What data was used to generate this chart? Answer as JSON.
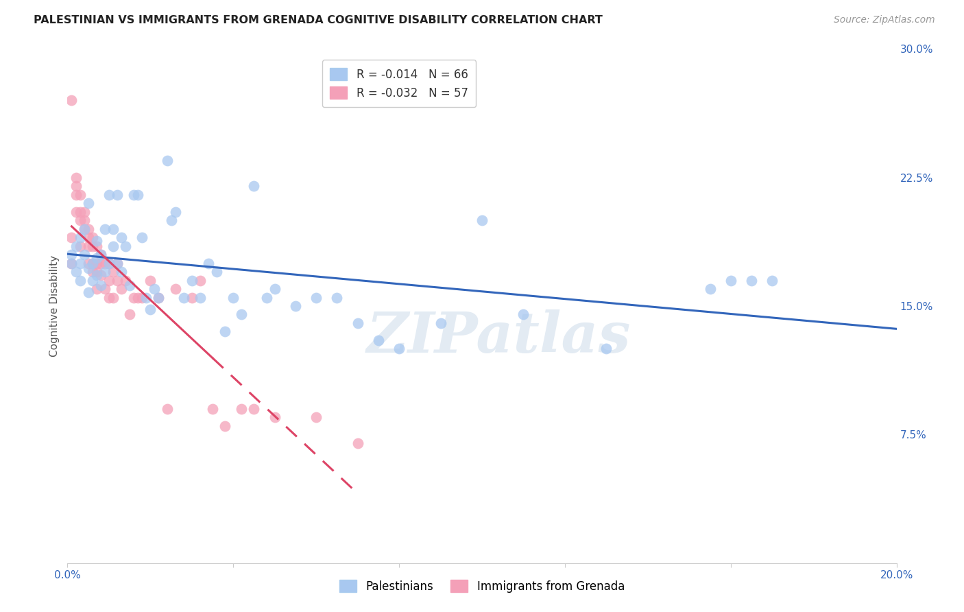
{
  "title": "PALESTINIAN VS IMMIGRANTS FROM GRENADA COGNITIVE DISABILITY CORRELATION CHART",
  "source": "Source: ZipAtlas.com",
  "ylabel": "Cognitive Disability",
  "x_min": 0.0,
  "x_max": 0.2,
  "y_min": 0.0,
  "y_max": 0.3,
  "watermark": "ZIPatlas",
  "blue_R": "-0.014",
  "blue_N": "66",
  "pink_R": "-0.032",
  "pink_N": "57",
  "blue_color": "#a8c8f0",
  "pink_color": "#f4a0b8",
  "blue_line_color": "#3366bb",
  "pink_line_color": "#dd4466",
  "background_color": "#ffffff",
  "grid_color": "#cccccc",
  "blue_points_x": [
    0.001,
    0.001,
    0.002,
    0.002,
    0.003,
    0.003,
    0.003,
    0.004,
    0.004,
    0.005,
    0.005,
    0.005,
    0.006,
    0.006,
    0.007,
    0.007,
    0.007,
    0.008,
    0.008,
    0.009,
    0.009,
    0.01,
    0.01,
    0.011,
    0.011,
    0.012,
    0.012,
    0.013,
    0.013,
    0.014,
    0.015,
    0.016,
    0.017,
    0.018,
    0.019,
    0.02,
    0.021,
    0.022,
    0.024,
    0.025,
    0.026,
    0.028,
    0.03,
    0.032,
    0.034,
    0.036,
    0.038,
    0.04,
    0.042,
    0.045,
    0.048,
    0.05,
    0.055,
    0.06,
    0.065,
    0.07,
    0.075,
    0.08,
    0.09,
    0.1,
    0.11,
    0.13,
    0.155,
    0.16,
    0.165,
    0.17
  ],
  "blue_points_y": [
    0.175,
    0.18,
    0.17,
    0.185,
    0.175,
    0.19,
    0.165,
    0.18,
    0.195,
    0.172,
    0.158,
    0.21,
    0.175,
    0.165,
    0.168,
    0.178,
    0.188,
    0.162,
    0.18,
    0.195,
    0.17,
    0.175,
    0.215,
    0.185,
    0.195,
    0.175,
    0.215,
    0.19,
    0.17,
    0.185,
    0.162,
    0.215,
    0.215,
    0.19,
    0.155,
    0.148,
    0.16,
    0.155,
    0.235,
    0.2,
    0.205,
    0.155,
    0.165,
    0.155,
    0.175,
    0.17,
    0.135,
    0.155,
    0.145,
    0.22,
    0.155,
    0.16,
    0.15,
    0.155,
    0.155,
    0.14,
    0.13,
    0.125,
    0.14,
    0.2,
    0.145,
    0.125,
    0.16,
    0.165,
    0.165,
    0.165
  ],
  "pink_points_x": [
    0.001,
    0.001,
    0.001,
    0.002,
    0.002,
    0.002,
    0.002,
    0.003,
    0.003,
    0.003,
    0.003,
    0.004,
    0.004,
    0.004,
    0.005,
    0.005,
    0.005,
    0.005,
    0.006,
    0.006,
    0.006,
    0.006,
    0.007,
    0.007,
    0.007,
    0.007,
    0.008,
    0.008,
    0.008,
    0.009,
    0.009,
    0.01,
    0.01,
    0.01,
    0.011,
    0.011,
    0.012,
    0.012,
    0.013,
    0.014,
    0.015,
    0.016,
    0.017,
    0.018,
    0.02,
    0.022,
    0.024,
    0.026,
    0.03,
    0.032,
    0.035,
    0.038,
    0.042,
    0.045,
    0.05,
    0.06,
    0.07
  ],
  "pink_points_y": [
    0.27,
    0.19,
    0.175,
    0.225,
    0.22,
    0.215,
    0.205,
    0.215,
    0.205,
    0.2,
    0.185,
    0.2,
    0.195,
    0.205,
    0.195,
    0.185,
    0.19,
    0.175,
    0.19,
    0.185,
    0.175,
    0.17,
    0.185,
    0.175,
    0.17,
    0.16,
    0.175,
    0.168,
    0.18,
    0.16,
    0.175,
    0.155,
    0.175,
    0.165,
    0.155,
    0.17,
    0.165,
    0.175,
    0.16,
    0.165,
    0.145,
    0.155,
    0.155,
    0.155,
    0.165,
    0.155,
    0.09,
    0.16,
    0.155,
    0.165,
    0.09,
    0.08,
    0.09,
    0.09,
    0.085,
    0.085,
    0.07
  ]
}
